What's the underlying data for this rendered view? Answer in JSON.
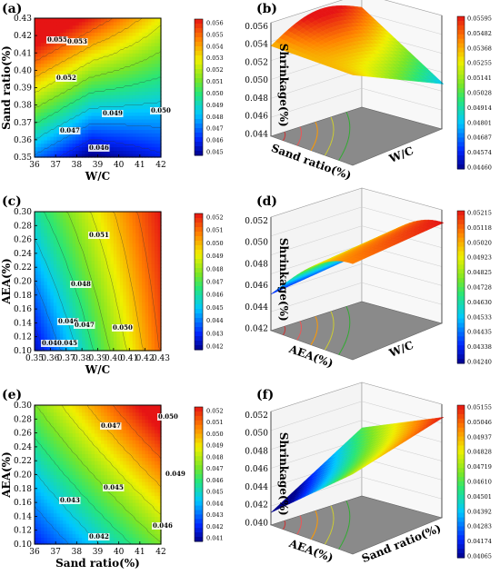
{
  "chart_data": [
    {
      "panel": "(a)",
      "type": "heatmap",
      "xlabel": "W/C",
      "ylabel": "Sand ratio(%)",
      "xticks": [
        "36",
        "37",
        "38",
        "39",
        "40",
        "41",
        "42"
      ],
      "yticks": [
        "0.35",
        "0.36",
        "0.37",
        "0.38",
        "0.39",
        "0.40",
        "0.41",
        "0.42",
        "0.43"
      ],
      "contour_labels": [
        "0.055",
        "0.053",
        "0.052",
        "0.049",
        "0.050",
        "0.047",
        "0.046"
      ],
      "colorbar_ticks": [
        "0.056",
        "0.055",
        "0.054",
        "0.053",
        "0.052",
        "0.051",
        "0.050",
        "0.049",
        "0.048",
        "0.047",
        "0.046",
        "0.045"
      ]
    },
    {
      "panel": "(b)",
      "type": "surface",
      "zlabel": "Shrinkage(%)",
      "xlabel": "Sand ratio(%)",
      "ylabel": "W/C",
      "zticks": [
        "0.056",
        "0.054",
        "0.052",
        "0.050",
        "0.048",
        "0.046",
        "0.044"
      ],
      "colorbar_ticks": [
        "0.05595",
        "0.05482",
        "0.05368",
        "0.05255",
        "0.05141",
        "0.05028",
        "0.04914",
        "0.04801",
        "0.04687",
        "0.04574",
        "0.04460"
      ]
    },
    {
      "panel": "(c)",
      "type": "heatmap",
      "xlabel": "W/C",
      "ylabel": "AEA(%)",
      "xticks": [
        "0.35",
        "0.36",
        "0.37",
        "0.38",
        "0.39",
        "0.40",
        "0.41",
        "0.42",
        "0.43"
      ],
      "yticks": [
        "0.10",
        "0.12",
        "0.14",
        "0.16",
        "0.18",
        "0.20",
        "0.22",
        "0.24",
        "0.26",
        "0.28",
        "0.30"
      ],
      "contour_labels": [
        "0.051",
        "0.048",
        "0.046",
        "0.047",
        "0.050",
        "0.040.045"
      ],
      "colorbar_ticks": [
        "0.052",
        "0.051",
        "0.050",
        "0.049",
        "0.048",
        "0.047",
        "0.046",
        "0.045",
        "0.044",
        "0.043",
        "0.042"
      ]
    },
    {
      "panel": "(d)",
      "type": "surface",
      "zlabel": "Shrinkage(%)",
      "xlabel": "AEA(%)",
      "ylabel": "W/C",
      "zticks": [
        "0.052",
        "0.050",
        "0.048",
        "0.046",
        "0.044",
        "0.042"
      ],
      "colorbar_ticks": [
        "0.05215",
        "0.05118",
        "0.05020",
        "0.04923",
        "0.04825",
        "0.04728",
        "0.04630",
        "0.04533",
        "0.04435",
        "0.04338",
        "0.04240"
      ]
    },
    {
      "panel": "(e)",
      "type": "heatmap",
      "xlabel": "Sand ratio(%)",
      "ylabel": "AEA(%)",
      "xticks": [
        "36",
        "37",
        "38",
        "39",
        "40",
        "41",
        "42"
      ],
      "yticks": [
        "0.10",
        "0.12",
        "0.14",
        "0.16",
        "0.18",
        "0.20",
        "0.22",
        "0.24",
        "0.26",
        "0.28",
        "0.30"
      ],
      "contour_labels": [
        "0.047",
        "0.050",
        "0.049",
        "0.045",
        "0.043",
        "0.046",
        "0.042"
      ],
      "colorbar_ticks": [
        "0.052",
        "0.051",
        "0.050",
        "0.049",
        "0.048",
        "0.047",
        "0.046",
        "0.045",
        "0.044",
        "0.043",
        "0.042",
        "0.041"
      ]
    },
    {
      "panel": "(f)",
      "type": "surface",
      "zlabel": "Shrinkage(%)",
      "xlabel": "AEA(%)",
      "ylabel": "Sand ratio(%)",
      "zticks": [
        "0.052",
        "0.050",
        "0.048",
        "0.046",
        "0.044",
        "0.042",
        "0.040"
      ],
      "colorbar_ticks": [
        "0.05155",
        "0.05046",
        "0.04937",
        "0.04828",
        "0.04719",
        "0.04610",
        "0.04501",
        "0.04392",
        "0.04283",
        "0.04174",
        "0.04065"
      ]
    }
  ]
}
